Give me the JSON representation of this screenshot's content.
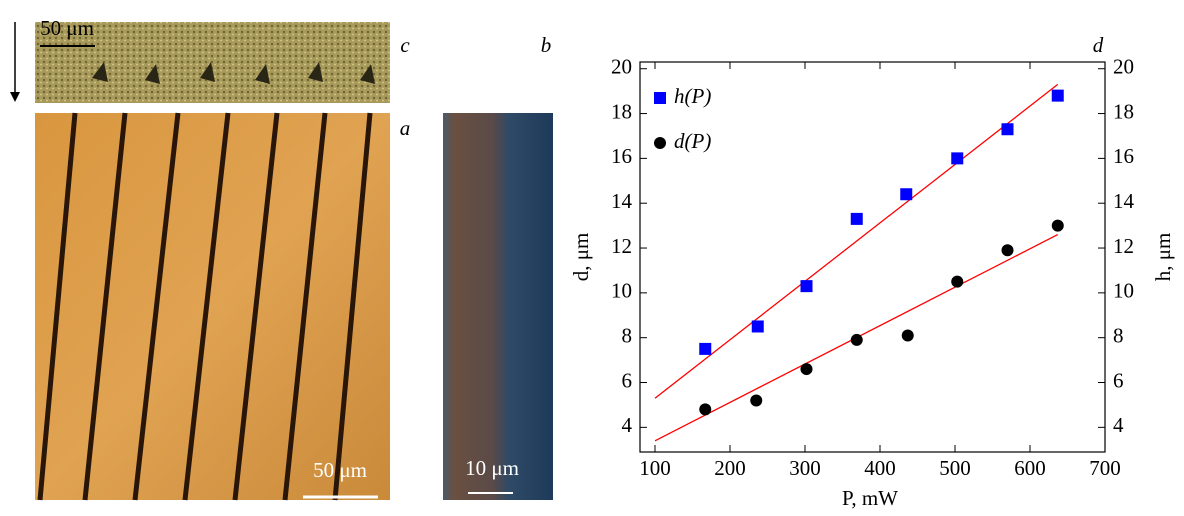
{
  "panels": {
    "c": {
      "label": "c",
      "scale_bar": "50 μm"
    },
    "a": {
      "label": "a",
      "scale_bar": "50 μm"
    },
    "b": {
      "label": "b",
      "scale_bar": "10 μm"
    },
    "d": {
      "label": "d"
    }
  },
  "chart_data": {
    "type": "scatter",
    "x_label": "P, mW",
    "y_label": "d, μm",
    "y2_label": "h, μm",
    "xlim": [
      80,
      700
    ],
    "xticks": [
      100,
      200,
      300,
      400,
      500,
      600,
      700
    ],
    "ylim": [
      2.9,
      20.3
    ],
    "yticks": [
      4,
      6,
      8,
      10,
      12,
      14,
      16,
      18,
      20
    ],
    "y2lim": [
      2.9,
      20.3
    ],
    "y2ticks": [
      4,
      6,
      8,
      10,
      12,
      14,
      16,
      18,
      20
    ],
    "legend": "upper left",
    "series": [
      {
        "name": "h(P)",
        "marker": "square",
        "color": "#0000ff",
        "axis": "y2",
        "x": [
          167,
          237,
          302,
          369,
          435,
          503,
          570,
          637
        ],
        "values": [
          7.5,
          8.5,
          10.3,
          13.3,
          14.4,
          16.0,
          17.3,
          18.8
        ]
      },
      {
        "name": "d(P)",
        "marker": "circle",
        "color": "#000000",
        "x": [
          167,
          235,
          302,
          369,
          437,
          503,
          570,
          637
        ],
        "values": [
          4.8,
          5.2,
          6.6,
          7.9,
          8.1,
          10.5,
          11.9,
          13.0
        ]
      }
    ],
    "fits": [
      {
        "color": "#ff0000",
        "axis": "y2",
        "x": [
          100,
          637
        ],
        "values": [
          5.3,
          19.3
        ]
      },
      {
        "color": "#ff0000",
        "x": [
          100,
          637
        ],
        "values": [
          3.4,
          12.6
        ]
      }
    ]
  }
}
